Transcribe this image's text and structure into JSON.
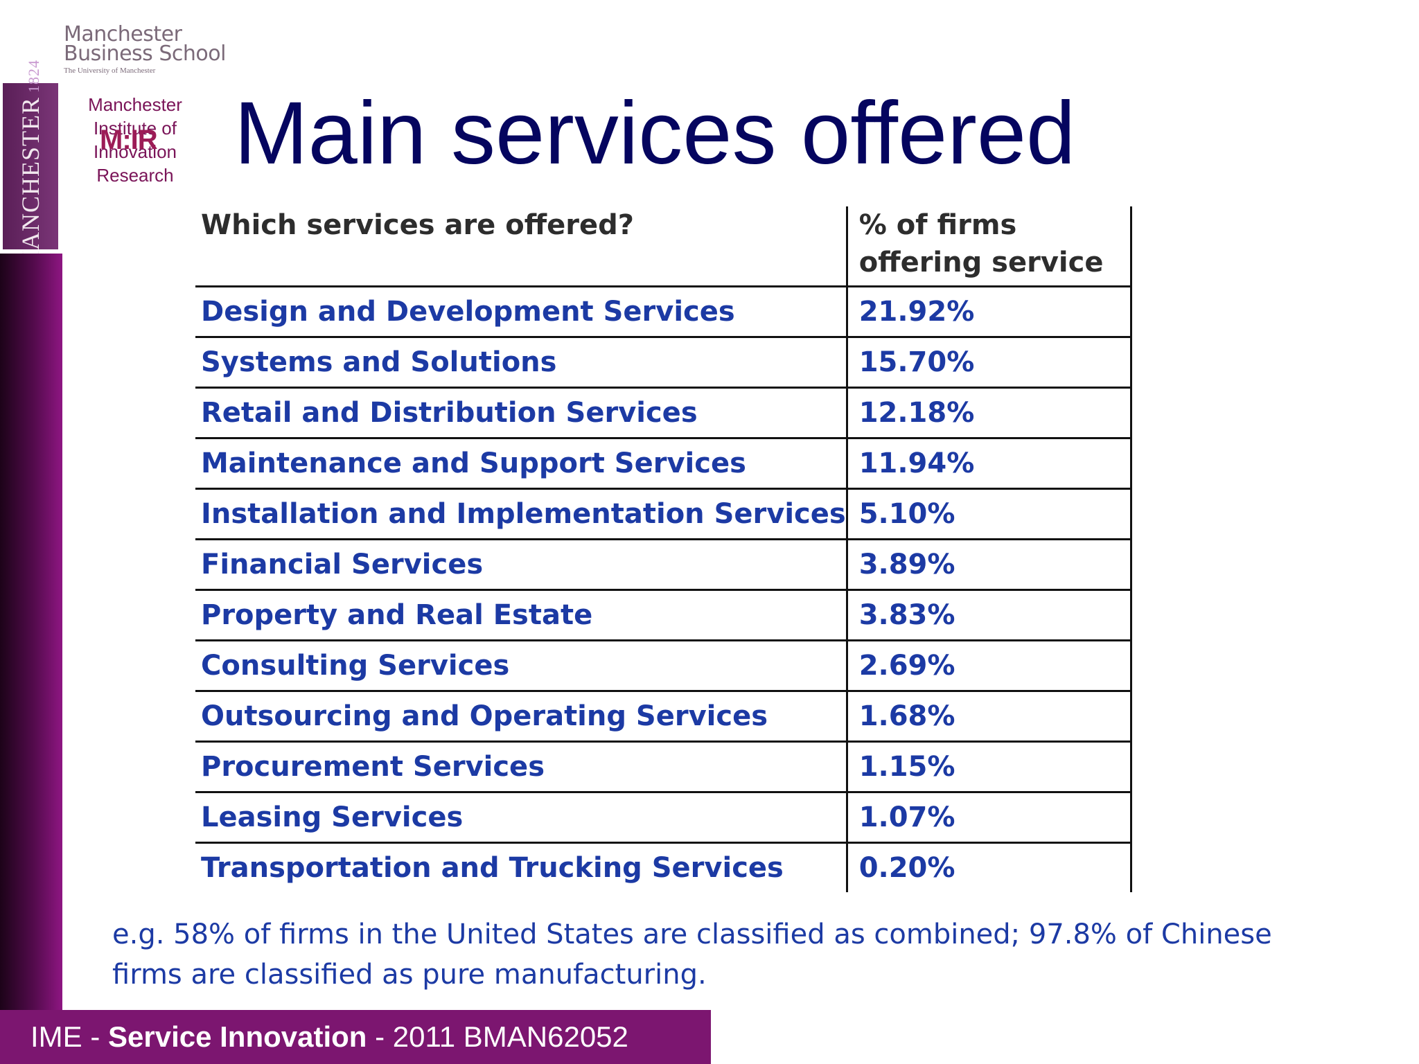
{
  "header": {
    "mbs_logo": {
      "line1": "Manchester",
      "line2": "Business School",
      "line3": "The University of Manchester"
    },
    "crest": {
      "name": "MANCHESTER",
      "year": "1824"
    },
    "institute": {
      "lines": [
        "Manchester",
        "Institute of",
        "Innovation",
        "Research"
      ],
      "logo_text": "M:IR"
    },
    "title": "Main services offered"
  },
  "table": {
    "headers": [
      "Which services are offered?",
      "% of firms offering service"
    ],
    "rows": [
      [
        "Design and Development Services",
        "21.92%"
      ],
      [
        "Systems and Solutions",
        "15.70%"
      ],
      [
        "Retail and Distribution Services",
        "12.18%"
      ],
      [
        "Maintenance and Support Services",
        "11.94%"
      ],
      [
        "Installation and Implementation Services",
        "5.10%"
      ],
      [
        "Financial Services",
        "3.89%"
      ],
      [
        "Property and Real Estate",
        "3.83%"
      ],
      [
        "Consulting Services",
        "2.69%"
      ],
      [
        "Outsourcing and Operating Services",
        "1.68%"
      ],
      [
        "Procurement Services",
        "1.15%"
      ],
      [
        "Leasing Services",
        "1.07%"
      ],
      [
        "Transportation and Trucking Services",
        "0.20%"
      ]
    ]
  },
  "note": {
    "line1": "e.g. 58% of firms in the United States are classified as combined; 97.8% of Chinese",
    "line2": "firms are classified as pure manufacturing."
  },
  "footer": {
    "prefix": "IME",
    "sep1": " - ",
    "course": "Service Innovation",
    "sep2": " - ",
    "code": "2011 BMAN62052"
  },
  "colors": {
    "title": "#05055f",
    "table_text": "#1c3aa4",
    "footer_bg": "#7c1670",
    "sidebar": "#540b4d"
  }
}
